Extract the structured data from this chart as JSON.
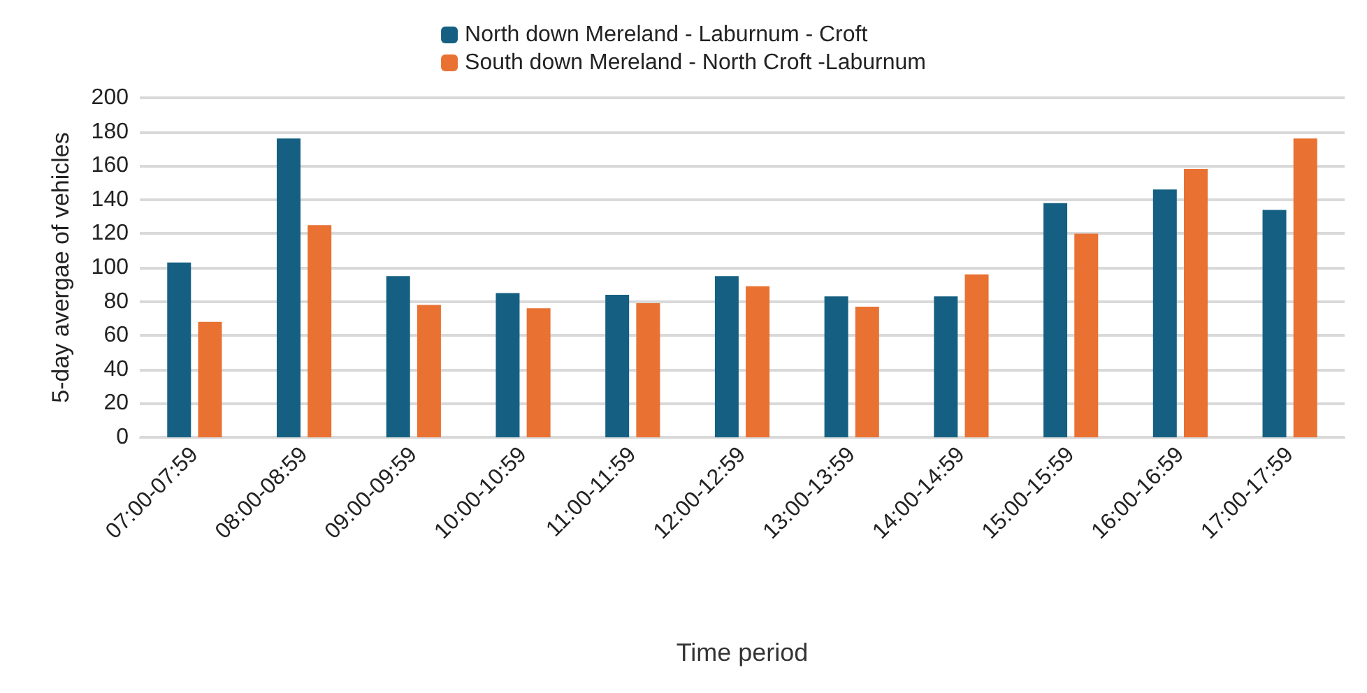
{
  "chart_data": {
    "type": "bar",
    "xlabel": "Time period",
    "ylabel": "5-day avergae of vehicles",
    "categories": [
      "07:00-07:59",
      "08:00-08:59",
      "09:00-09:59",
      "10:00-10:59",
      "11:00-11:59",
      "12:00-12:59",
      "13:00-13:59",
      "14:00-14:59",
      "15:00-15:59",
      "16:00-16:59",
      "17:00-17:59"
    ],
    "series": [
      {
        "name": "North down Mereland - Laburnum - Croft",
        "color": "#156082",
        "values": [
          103,
          176,
          95,
          85,
          84,
          95,
          83,
          83,
          138,
          146,
          134
        ]
      },
      {
        "name": "South down Mereland - North Croft -Laburnum",
        "color": "#e97132",
        "values": [
          68,
          125,
          78,
          76,
          79,
          89,
          77,
          96,
          120,
          158,
          176
        ]
      }
    ],
    "ylim": [
      0,
      200
    ],
    "yticks": [
      0,
      20,
      40,
      60,
      80,
      100,
      120,
      140,
      160,
      180,
      200
    ],
    "grid": "y",
    "legend": "top"
  }
}
